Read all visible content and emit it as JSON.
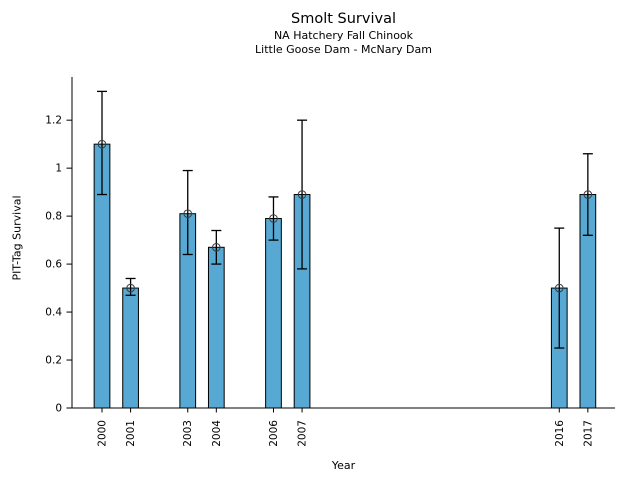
{
  "figure": {
    "title": "Smolt Survival",
    "subtitle1": "NA Hatchery Fall Chinook",
    "subtitle2": "Little Goose Dam - McNary Dam",
    "xlabel": "Year",
    "ylabel": "PIT-Tag Survival"
  },
  "chart_data": {
    "type": "bar",
    "title": "Smolt Survival",
    "subtitle": [
      "NA Hatchery Fall Chinook",
      "Little Goose Dam - McNary Dam"
    ],
    "xlabel": "Year",
    "ylabel": "PIT-Tag Survival",
    "categories": [
      2000,
      2001,
      2003,
      2004,
      2006,
      2007,
      2016,
      2017
    ],
    "values": [
      1.1,
      0.5,
      0.81,
      0.67,
      0.79,
      0.89,
      0.5,
      0.89
    ],
    "error_low": [
      0.89,
      0.47,
      0.64,
      0.6,
      0.7,
      0.58,
      0.25,
      0.72
    ],
    "error_high": [
      1.32,
      0.54,
      0.99,
      0.74,
      0.88,
      1.2,
      0.75,
      1.06
    ],
    "xlim": [
      1998.95,
      2017.95
    ],
    "ylim": [
      0,
      1.38
    ],
    "yticks": [
      0,
      0.2,
      0.4,
      0.6,
      0.8,
      1,
      1.2
    ],
    "ytick_labels": [
      "0",
      "0.2",
      "0.4",
      "0.6",
      "0.8",
      "1",
      "1.2"
    ],
    "bar_width_years": 0.55,
    "bar_color": "#57A9D3",
    "bar_edge_color": "#000000",
    "error_color": "#000000",
    "marker": "open-circle",
    "marker_color": "#3a3a3a",
    "axis_color": "#000000",
    "grid": false,
    "legend": null
  }
}
